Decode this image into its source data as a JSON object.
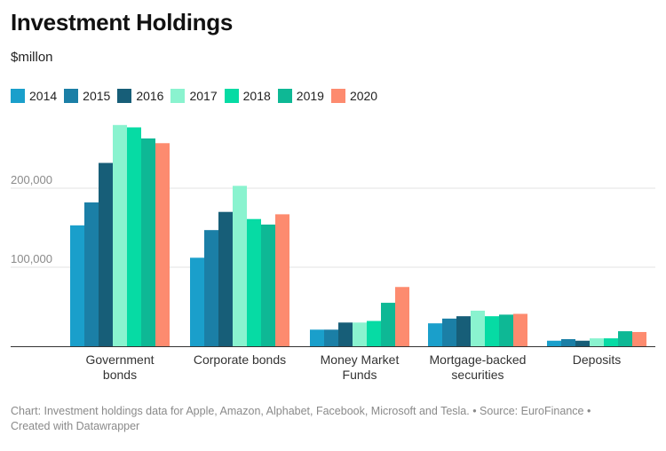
{
  "header": {
    "title": "Investment Holdings",
    "subtitle": "$millon"
  },
  "footer": {
    "line1": "Chart: Investment holdings data for Apple, Amazon, Alphabet, Facebook, Microsoft and Tesla. • Source: EuroFinance •",
    "line2": "Created with Datawrapper"
  },
  "legend_position": "top-left",
  "chart_data": {
    "type": "bar",
    "title": "Investment Holdings",
    "subtitle": "$millon",
    "xlabel": "",
    "ylabel": "",
    "ylim": [
      0,
      300000
    ],
    "yticks": [
      {
        "value": 100000,
        "label": "100,000"
      },
      {
        "value": 200000,
        "label": "200,000"
      }
    ],
    "grid": true,
    "categories": [
      [
        "Government",
        "bonds"
      ],
      [
        "Corporate bonds"
      ],
      [
        "Money Market",
        "Funds"
      ],
      [
        "Mortgage-backed",
        "securities"
      ],
      [
        "Deposits"
      ]
    ],
    "series": [
      {
        "name": "2014",
        "color": "#1a9fcb",
        "values": [
          153000,
          112000,
          21000,
          29000,
          7000
        ]
      },
      {
        "name": "2015",
        "color": "#1b7fa6",
        "values": [
          182000,
          147000,
          21000,
          35000,
          9000
        ]
      },
      {
        "name": "2016",
        "color": "#175e78",
        "values": [
          232000,
          170000,
          30000,
          38000,
          7000
        ]
      },
      {
        "name": "2017",
        "color": "#8af3cf",
        "values": [
          280000,
          203000,
          30000,
          45000,
          10000
        ]
      },
      {
        "name": "2018",
        "color": "#06dba4",
        "values": [
          277000,
          161000,
          32000,
          38000,
          10000
        ]
      },
      {
        "name": "2019",
        "color": "#0eb895",
        "values": [
          263000,
          154000,
          55000,
          40000,
          19000
        ]
      },
      {
        "name": "2020",
        "color": "#fd8b6f",
        "values": [
          257000,
          167000,
          75000,
          41000,
          18000
        ]
      }
    ]
  }
}
